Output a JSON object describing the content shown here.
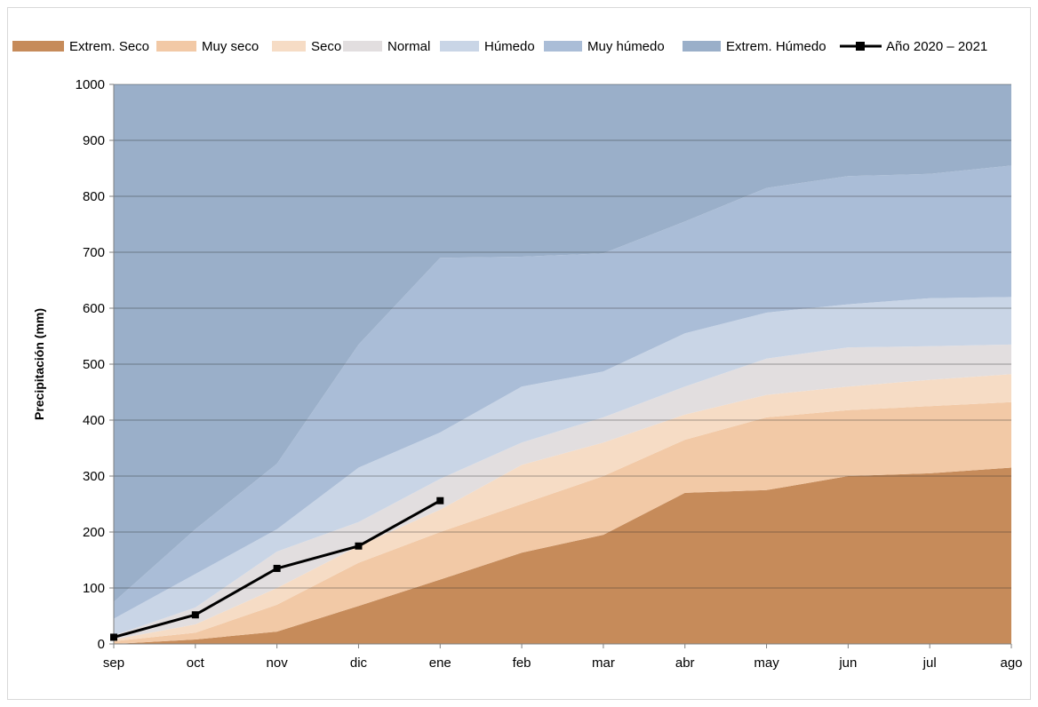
{
  "chart_data": {
    "type": "area",
    "title": "",
    "xlabel": "",
    "ylabel": "Precipitación (mm)",
    "ylim": [
      0,
      1000
    ],
    "yticks": [
      0,
      100,
      200,
      300,
      400,
      500,
      600,
      700,
      800,
      900,
      1000
    ],
    "grid": true,
    "legend_position": "top",
    "categories": [
      "sep",
      "oct",
      "nov",
      "dic",
      "ene",
      "feb",
      "mar",
      "abr",
      "may",
      "jun",
      "jul",
      "ago"
    ],
    "bands": [
      {
        "name": "Extrem. Seco",
        "color": "#c68b5a",
        "upper": [
          0,
          8,
          22,
          68,
          115,
          163,
          195,
          270,
          275,
          300,
          305,
          315
        ]
      },
      {
        "name": "Muy seco",
        "color": "#f2c9a6",
        "upper": [
          5,
          20,
          70,
          145,
          200,
          250,
          300,
          365,
          405,
          418,
          425,
          432
        ]
      },
      {
        "name": "Seco",
        "color": "#f6dcc5",
        "upper": [
          8,
          35,
          100,
          175,
          240,
          320,
          360,
          410,
          445,
          460,
          472,
          482
        ]
      },
      {
        "name": "Normal",
        "color": "#e2dedf",
        "upper": [
          15,
          65,
          165,
          218,
          295,
          360,
          405,
          460,
          510,
          530,
          532,
          535
        ]
      },
      {
        "name": "Húmedo",
        "color": "#c9d5e6",
        "upper": [
          45,
          125,
          205,
          315,
          378,
          460,
          487,
          555,
          592,
          607,
          618,
          620
        ]
      },
      {
        "name": "Muy húmedo",
        "color": "#aabdd7",
        "upper": [
          75,
          205,
          322,
          535,
          690,
          692,
          698,
          755,
          815,
          836,
          840,
          855
        ]
      },
      {
        "name": "Extrem. Húmedo",
        "color": "#9aafc9",
        "upper": [
          1000,
          1000,
          1000,
          1000,
          1000,
          1000,
          1000,
          1000,
          1000,
          1000,
          1000,
          1000
        ]
      }
    ],
    "line_series": {
      "name": "Año 2020 – 2021",
      "color": "#000000",
      "values": [
        12,
        52,
        135,
        175,
        256
      ]
    }
  }
}
